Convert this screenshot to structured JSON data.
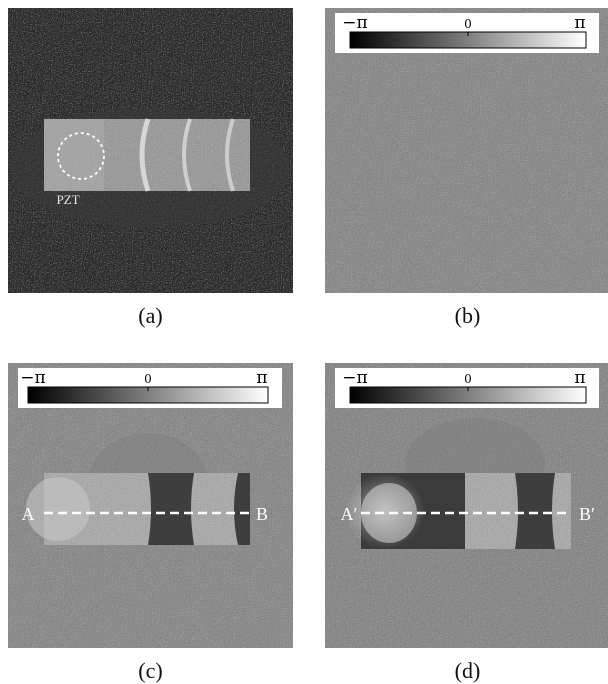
{
  "panels": {
    "a": {
      "caption": "(a)",
      "marker_label": "PZT"
    },
    "b": {
      "caption": "(b)",
      "colorbar": {
        "min_label": "−π",
        "mid_label": "0",
        "max_label": "π"
      }
    },
    "c": {
      "caption": "(c)",
      "colorbar": {
        "min_label": "−π",
        "mid_label": "0",
        "max_label": "π"
      },
      "line_start": "A",
      "line_end": "B"
    },
    "d": {
      "caption": "(d)",
      "colorbar": {
        "min_label": "−π",
        "mid_label": "0",
        "max_label": "π"
      },
      "line_start": "A′",
      "line_end": "B′"
    }
  },
  "colors": {
    "background_dark": "#2a2a2a",
    "phase_gray": "#8a8a8a",
    "marker": "#ffffff"
  }
}
